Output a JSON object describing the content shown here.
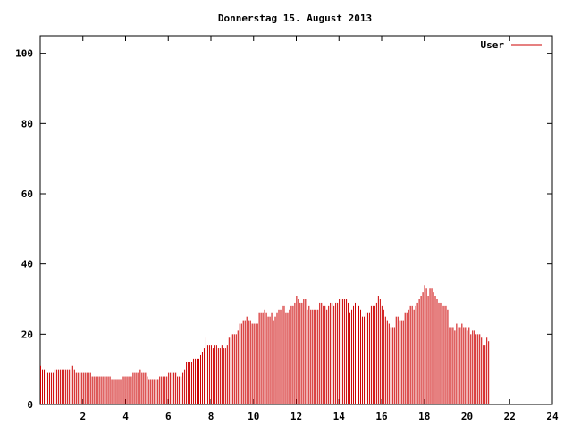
{
  "chart_data": {
    "type": "bar",
    "title": "Donnerstag 15. August 2013",
    "xlabel": "",
    "ylabel": "",
    "xlim": [
      0,
      24
    ],
    "ylim": [
      0,
      105
    ],
    "x_ticks": [
      2,
      4,
      6,
      8,
      10,
      12,
      14,
      16,
      18,
      20,
      22,
      24
    ],
    "y_ticks": [
      0,
      20,
      40,
      60,
      80,
      100
    ],
    "origin_label": "0",
    "grid": false,
    "legend": {
      "position": "top-right"
    },
    "series": [
      {
        "name": "User",
        "color": "#cc0000",
        "x_start": 0,
        "x_step": 0.0833,
        "values": [
          11,
          10,
          10,
          10,
          9,
          9,
          9,
          9,
          10,
          10,
          10,
          10,
          10,
          10,
          10,
          10,
          10,
          10,
          11,
          10,
          9,
          9,
          9,
          9,
          9,
          9,
          9,
          9,
          9,
          8,
          8,
          8,
          8,
          8,
          8,
          8,
          8,
          8,
          8,
          8,
          7,
          7,
          7,
          7,
          7,
          7,
          8,
          8,
          8,
          8,
          8,
          8,
          9,
          9,
          9,
          9,
          10,
          9,
          9,
          9,
          8,
          7,
          7,
          7,
          7,
          7,
          7,
          8,
          8,
          8,
          8,
          8,
          9,
          9,
          9,
          9,
          9,
          8,
          8,
          8,
          9,
          10,
          12,
          12,
          12,
          12,
          13,
          13,
          13,
          13,
          14,
          15,
          16,
          19,
          17,
          17,
          17,
          16,
          17,
          17,
          16,
          16,
          17,
          16,
          16,
          17,
          19,
          19,
          20,
          20,
          20,
          21,
          23,
          23,
          24,
          24,
          25,
          24,
          24,
          23,
          23,
          23,
          23,
          26,
          26,
          26,
          27,
          26,
          25,
          25,
          26,
          24,
          25,
          26,
          27,
          27,
          28,
          28,
          26,
          26,
          27,
          28,
          28,
          29,
          31,
          30,
          29,
          29,
          30,
          30,
          27,
          28,
          27,
          27,
          27,
          27,
          27,
          29,
          29,
          28,
          28,
          27,
          28,
          29,
          29,
          28,
          29,
          29,
          30,
          30,
          30,
          30,
          30,
          29,
          26,
          27,
          28,
          29,
          29,
          28,
          27,
          25,
          25,
          26,
          26,
          26,
          28,
          28,
          28,
          29,
          31,
          30,
          28,
          27,
          25,
          24,
          23,
          22,
          22,
          22,
          25,
          25,
          24,
          24,
          24,
          26,
          26,
          27,
          28,
          28,
          27,
          28,
          29,
          30,
          31,
          32,
          34,
          33,
          31,
          33,
          33,
          32,
          31,
          30,
          29,
          29,
          28,
          28,
          28,
          27,
          22,
          22,
          22,
          21,
          23,
          22,
          22,
          23,
          22,
          22,
          21,
          22,
          20,
          21,
          21,
          20,
          20,
          20,
          19,
          17,
          17,
          19,
          18
        ]
      }
    ]
  }
}
